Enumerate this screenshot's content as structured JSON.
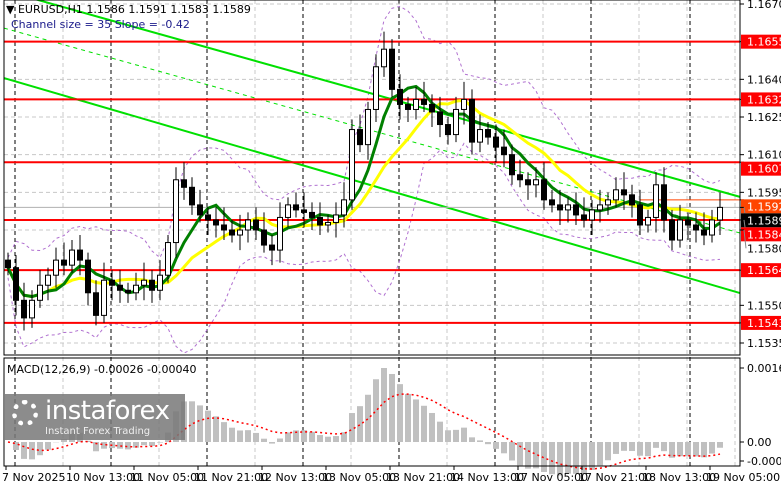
{
  "header": {
    "symbol_line": "EURUSD,H1  1.1586 1.1591 1.1583 1.1589",
    "channel_line": "Channel size = 35 Slope = -0.42"
  },
  "macd_label": "MACD(12,26,9) -0.00026 -0.00040",
  "watermark": {
    "brand": "instaforex",
    "tagline": "Instant Forex Trading"
  },
  "colors": {
    "levels": "#ff0000",
    "fast_ma": "#008000",
    "slow_ma": "#ffff00",
    "channel": "#00e000",
    "bands": "#b070d0",
    "histogram": "#c0c0c0",
    "signal": "#ff0000",
    "current_price": "#000000",
    "ask_label": "#ff4500"
  },
  "chart_data": {
    "type": "candlestick",
    "symbol": "EURUSD",
    "timeframe": "H1",
    "ylim": [
      1.153,
      1.167
    ],
    "y_ticks": [
      "1.1670",
      "1.1640",
      "1.1625",
      "1.1610",
      "1.1595",
      "1.1580",
      "1.1550",
      "1.1535"
    ],
    "x_ticks": [
      "7 Nov 2025",
      "10 Nov 13:00",
      "11 Nov 05:00",
      "11 Nov 21:00",
      "12 Nov 13:00",
      "13 Nov 05:00",
      "13 Nov 21:00",
      "14 Nov 13:00",
      "17 Nov 05:00",
      "17 Nov 21:00",
      "18 Nov 13:00",
      "19 Nov 05:00"
    ],
    "closes": [
      1.1565,
      1.1552,
      1.1545,
      1.1552,
      1.1558,
      1.1562,
      1.1568,
      1.1566,
      1.1572,
      1.1568,
      1.1555,
      1.1546,
      1.156,
      1.1558,
      1.1556,
      1.1555,
      1.1558,
      1.156,
      1.1556,
      1.1562,
      1.1575,
      1.16,
      1.1597,
      1.159,
      1.1586,
      1.1584,
      1.1582,
      1.158,
      1.1578,
      1.158,
      1.1584,
      1.158,
      1.1574,
      1.1572,
      1.1585,
      1.159,
      1.1588,
      1.1587,
      1.1585,
      1.1582,
      1.1583,
      1.1586,
      1.1592,
      1.162,
      1.1614,
      1.1628,
      1.1645,
      1.1652,
      1.1636,
      1.163,
      1.1628,
      1.1632,
      1.163,
      1.1627,
      1.1622,
      1.1618,
      1.1628,
      1.1632,
      1.1615,
      1.162,
      1.1617,
      1.1613,
      1.161,
      1.1602,
      1.16,
      1.1598,
      1.16,
      1.1592,
      1.159,
      1.1588,
      1.159,
      1.1586,
      1.1584,
      1.1588,
      1.159,
      1.1592,
      1.1596,
      1.1594,
      1.159,
      1.1582,
      1.1585,
      1.1598,
      1.1584,
      1.1576,
      1.1584,
      1.1582,
      1.158,
      1.1578,
      1.1584,
      1.1589
    ],
    "levels": [
      "1.1655",
      "1.1632",
      "1.1607",
      "1.1584",
      "1.1564",
      "1.1543"
    ],
    "current_price": "1.1589",
    "ask_price": "1.1592",
    "channel": {
      "upper": [
        1.16754,
        1.15932
      ],
      "middle": [
        1.16604,
        1.15788
      ],
      "lower": [
        1.16405,
        1.15549
      ]
    },
    "macd": {
      "params": "12,26,9",
      "ylim": [
        -0.00084,
        0.00163
      ],
      "y_ticks": [
        "0.00163",
        "0.00",
        "-0.00084"
      ]
    }
  }
}
